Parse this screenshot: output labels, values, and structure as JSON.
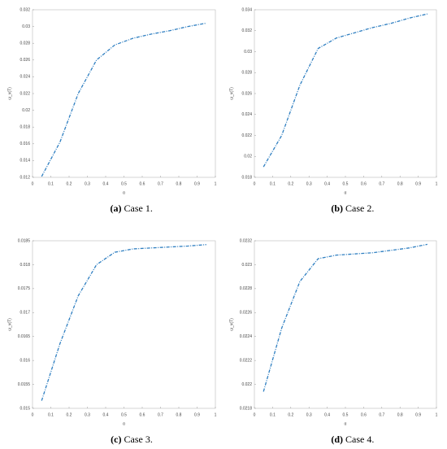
{
  "chart_data": [
    {
      "type": "line",
      "caption_label": "(a)",
      "caption": "Case 1.",
      "xlabel": "α",
      "ylabel": "ω_v(T)",
      "x": [
        0.05,
        0.15,
        0.25,
        0.35,
        0.45,
        0.55,
        0.65,
        0.75,
        0.85,
        0.95
      ],
      "series": [
        {
          "color": "#2f7fc1",
          "values": [
            0.0121,
            0.0162,
            0.022,
            0.026,
            0.0278,
            0.0286,
            0.0291,
            0.0295,
            0.03,
            0.0304
          ]
        }
      ],
      "xlim": [
        0,
        1
      ],
      "xticks": [
        0,
        0.1,
        0.2,
        0.3,
        0.4,
        0.5,
        0.6,
        0.7,
        0.8,
        0.9,
        1
      ],
      "ylim": [
        0.012,
        0.032
      ],
      "yticks": [
        0.012,
        0.014,
        0.016,
        0.018,
        0.02,
        0.022,
        0.024,
        0.026,
        0.028,
        0.03,
        0.032
      ]
    },
    {
      "type": "line",
      "caption_label": "(b)",
      "caption": "Case 2.",
      "xlabel": "α",
      "ylabel": "ω_v(T)",
      "x": [
        0.05,
        0.15,
        0.25,
        0.35,
        0.45,
        0.55,
        0.65,
        0.75,
        0.85,
        0.95
      ],
      "series": [
        {
          "color": "#2f7fc1",
          "values": [
            0.019,
            0.022,
            0.0268,
            0.0303,
            0.0313,
            0.0318,
            0.0323,
            0.0327,
            0.0332,
            0.0336
          ]
        }
      ],
      "xlim": [
        0,
        1
      ],
      "xticks": [
        0,
        0.1,
        0.2,
        0.3,
        0.4,
        0.5,
        0.6,
        0.7,
        0.8,
        0.9,
        1
      ],
      "ylim": [
        0.018,
        0.034
      ],
      "yticks": [
        0.018,
        0.02,
        0.022,
        0.024,
        0.026,
        0.028,
        0.03,
        0.032,
        0.034
      ]
    },
    {
      "type": "line",
      "caption_label": "(c)",
      "caption": "Case 3.",
      "xlabel": "α",
      "ylabel": "ω_v(T)",
      "x": [
        0.05,
        0.15,
        0.25,
        0.35,
        0.45,
        0.55,
        0.65,
        0.75,
        0.85,
        0.95
      ],
      "series": [
        {
          "color": "#2f7fc1",
          "values": [
            0.01516,
            0.01635,
            0.01735,
            0.018,
            0.01826,
            0.01833,
            0.01835,
            0.01837,
            0.01839,
            0.01842
          ]
        }
      ],
      "xlim": [
        0,
        1
      ],
      "xticks": [
        0,
        0.1,
        0.2,
        0.3,
        0.4,
        0.5,
        0.6,
        0.7,
        0.8,
        0.9,
        1
      ],
      "ylim": [
        0.015,
        0.0185
      ],
      "yticks": [
        0.015,
        0.0155,
        0.016,
        0.0165,
        0.017,
        0.0175,
        0.018,
        0.0185
      ]
    },
    {
      "type": "line",
      "caption_label": "(d)",
      "caption": "Case 4.",
      "xlabel": "α",
      "ylabel": "ω_v(T)",
      "x": [
        0.05,
        0.15,
        0.25,
        0.35,
        0.45,
        0.55,
        0.65,
        0.75,
        0.85,
        0.95
      ],
      "series": [
        {
          "color": "#2f7fc1",
          "values": [
            0.02194,
            0.02247,
            0.02286,
            0.02305,
            0.02308,
            0.02309,
            0.0231,
            0.02312,
            0.02314,
            0.02317
          ]
        }
      ],
      "xlim": [
        0,
        1
      ],
      "xticks": [
        0,
        0.1,
        0.2,
        0.3,
        0.4,
        0.5,
        0.6,
        0.7,
        0.8,
        0.9,
        1
      ],
      "ylim": [
        0.0218,
        0.0232
      ],
      "yticks": [
        0.0218,
        0.022,
        0.0222,
        0.0224,
        0.0226,
        0.0228,
        0.023,
        0.0232
      ]
    }
  ]
}
